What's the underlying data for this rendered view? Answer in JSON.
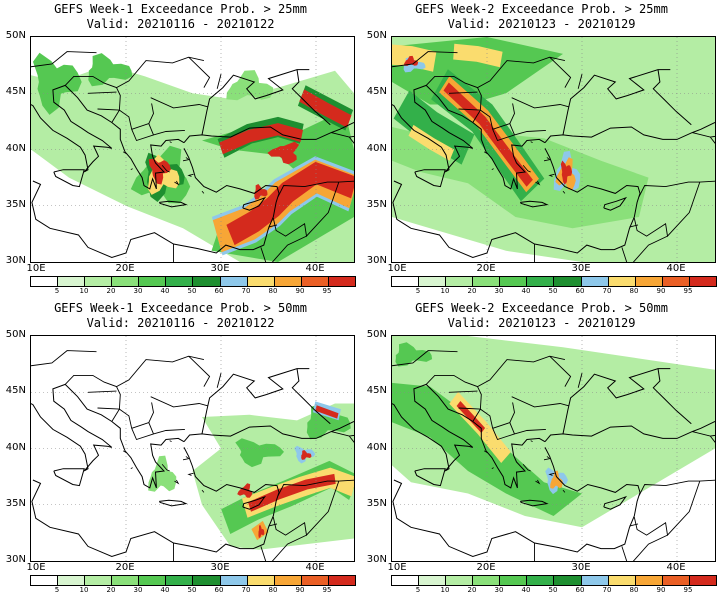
{
  "colors": {
    "bins": [
      "#ffffff",
      "#d8f5d0",
      "#b4eda4",
      "#8ae07a",
      "#55c852",
      "#33b04a",
      "#1e8f30",
      "#8ec8ea",
      "#fadc6e",
      "#f7a636",
      "#ea5f25",
      "#d42a1d",
      "#b02525"
    ],
    "coast": "#000000",
    "grid": "#888888"
  },
  "colorbar_labels": [
    "5",
    "10",
    "20",
    "30",
    "40",
    "50",
    "60",
    "70",
    "80",
    "90",
    "95"
  ],
  "lat_labels": [
    "50N",
    "45N",
    "40N",
    "35N",
    "30N"
  ],
  "lon_labels": [
    "10E",
    "20E",
    "30E",
    "40E"
  ],
  "panels": [
    {
      "title": "GEFS Week-1 Exceedance Prob. > 25mm",
      "valid": "Valid: 20210116 - 20210122"
    },
    {
      "title": "GEFS Week-2 Exceedance Prob. > 25mm",
      "valid": "Valid: 20210123 - 20210129"
    },
    {
      "title": "GEFS Week-1 Exceedance Prob. > 50mm",
      "valid": "Valid: 20210116 - 20210122"
    },
    {
      "title": "GEFS Week-2 Exceedance Prob. > 50mm",
      "valid": "Valid: 20210123 - 20210129"
    }
  ]
}
